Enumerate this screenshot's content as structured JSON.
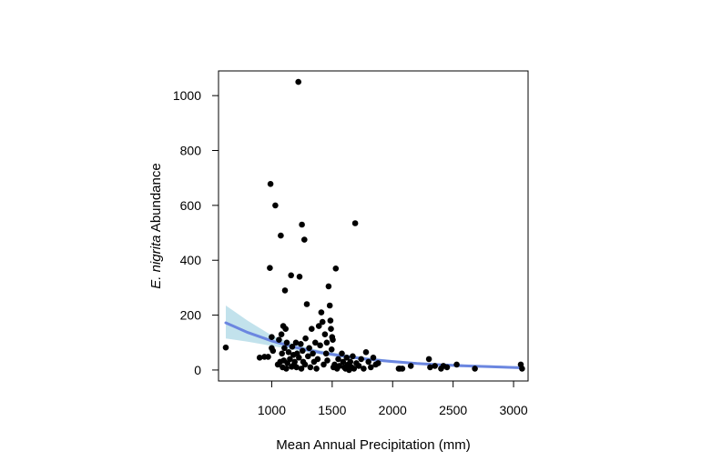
{
  "chart_data": {
    "type": "scatter",
    "title": "",
    "xlabel": "Mean Annual Precipitation (mm)",
    "ylabel_italic": "E. nigrita",
    "ylabel_rest": " Abundance",
    "xlim": [
      560,
      3120
    ],
    "ylim": [
      -40,
      1090
    ],
    "xticks": [
      1000,
      1500,
      2000,
      2500,
      3000
    ],
    "yticks": [
      0,
      200,
      400,
      600,
      800,
      1000
    ],
    "grid": false,
    "legend": "none",
    "colors": {
      "points": "#000000",
      "fit_line": "#6b86e0",
      "ci_band": "#add8e6"
    },
    "points": [
      [
        620,
        82
      ],
      [
        900,
        45
      ],
      [
        940,
        48
      ],
      [
        970,
        48
      ],
      [
        985,
        372
      ],
      [
        990,
        678
      ],
      [
        1000,
        80
      ],
      [
        1000,
        120
      ],
      [
        1010,
        70
      ],
      [
        1030,
        600
      ],
      [
        1050,
        20
      ],
      [
        1060,
        110
      ],
      [
        1070,
        30
      ],
      [
        1075,
        490
      ],
      [
        1080,
        130
      ],
      [
        1085,
        60
      ],
      [
        1090,
        10
      ],
      [
        1095,
        160
      ],
      [
        1100,
        35
      ],
      [
        1105,
        80
      ],
      [
        1110,
        290
      ],
      [
        1115,
        150
      ],
      [
        1120,
        5
      ],
      [
        1125,
        100
      ],
      [
        1130,
        25
      ],
      [
        1140,
        65
      ],
      [
        1150,
        40
      ],
      [
        1160,
        345
      ],
      [
        1165,
        12
      ],
      [
        1170,
        85
      ],
      [
        1180,
        55
      ],
      [
        1185,
        20
      ],
      [
        1190,
        30
      ],
      [
        1200,
        100
      ],
      [
        1205,
        10
      ],
      [
        1210,
        60
      ],
      [
        1220,
        1050
      ],
      [
        1225,
        45
      ],
      [
        1230,
        340
      ],
      [
        1240,
        95
      ],
      [
        1245,
        5
      ],
      [
        1250,
        530
      ],
      [
        1255,
        70
      ],
      [
        1260,
        30
      ],
      [
        1270,
        475
      ],
      [
        1275,
        20
      ],
      [
        1280,
        115
      ],
      [
        1290,
        240
      ],
      [
        1300,
        50
      ],
      [
        1310,
        80
      ],
      [
        1320,
        10
      ],
      [
        1330,
        150
      ],
      [
        1340,
        60
      ],
      [
        1350,
        30
      ],
      [
        1360,
        100
      ],
      [
        1370,
        5
      ],
      [
        1380,
        40
      ],
      [
        1390,
        160
      ],
      [
        1400,
        90
      ],
      [
        1410,
        210
      ],
      [
        1420,
        175
      ],
      [
        1430,
        20
      ],
      [
        1440,
        130
      ],
      [
        1450,
        60
      ],
      [
        1455,
        100
      ],
      [
        1460,
        35
      ],
      [
        1470,
        305
      ],
      [
        1480,
        235
      ],
      [
        1485,
        180
      ],
      [
        1490,
        150
      ],
      [
        1495,
        75
      ],
      [
        1500,
        120
      ],
      [
        1505,
        110
      ],
      [
        1510,
        10
      ],
      [
        1520,
        20
      ],
      [
        1530,
        370
      ],
      [
        1540,
        5
      ],
      [
        1550,
        40
      ],
      [
        1560,
        15
      ],
      [
        1580,
        60
      ],
      [
        1590,
        30
      ],
      [
        1600,
        10
      ],
      [
        1610,
        5
      ],
      [
        1620,
        45
      ],
      [
        1630,
        20
      ],
      [
        1640,
        0
      ],
      [
        1650,
        30
      ],
      [
        1660,
        10
      ],
      [
        1670,
        50
      ],
      [
        1680,
        5
      ],
      [
        1690,
        535
      ],
      [
        1700,
        25
      ],
      [
        1720,
        15
      ],
      [
        1740,
        40
      ],
      [
        1760,
        5
      ],
      [
        1780,
        65
      ],
      [
        1800,
        30
      ],
      [
        1820,
        10
      ],
      [
        1840,
        45
      ],
      [
        1860,
        20
      ],
      [
        1880,
        25
      ],
      [
        2050,
        5
      ],
      [
        2060,
        5
      ],
      [
        2080,
        5
      ],
      [
        2150,
        15
      ],
      [
        2300,
        40
      ],
      [
        2310,
        10
      ],
      [
        2350,
        15
      ],
      [
        2400,
        5
      ],
      [
        2420,
        15
      ],
      [
        2450,
        10
      ],
      [
        2530,
        20
      ],
      [
        2680,
        5
      ],
      [
        3060,
        20
      ],
      [
        3070,
        5
      ]
    ],
    "fit": {
      "x": [
        620,
        800,
        1000,
        1200,
        1400,
        1600,
        1800,
        2000,
        2200,
        2400,
        2600,
        2800,
        3070
      ],
      "y": [
        172,
        137,
        106,
        82,
        64,
        50,
        39,
        31,
        24,
        19,
        15,
        12,
        8
      ],
      "lower": [
        115,
        103,
        88,
        72,
        57,
        44,
        34,
        26,
        20,
        15,
        11,
        8,
        4
      ],
      "upper": [
        235,
        180,
        126,
        92,
        72,
        57,
        45,
        36,
        29,
        24,
        20,
        17,
        13
      ]
    }
  }
}
